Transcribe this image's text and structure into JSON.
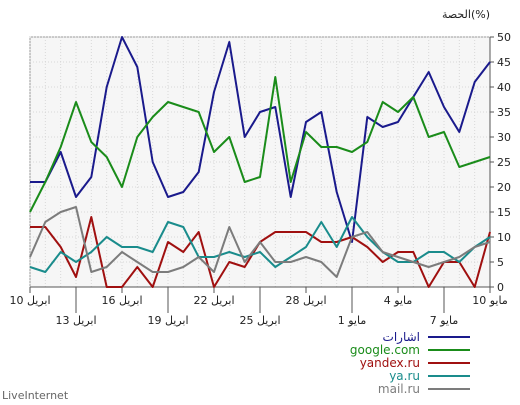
{
  "chart_data": {
    "type": "line",
    "title": "الحصة(%)",
    "ylim": [
      0,
      50
    ],
    "y_ticks": [
      0,
      5,
      10,
      15,
      20,
      25,
      30,
      35,
      40,
      45,
      50
    ],
    "x_ticks_row1": [
      {
        "index": 0,
        "label": "10 مايو"
      },
      {
        "index": 6,
        "label": "4 مايو"
      },
      {
        "index": 12,
        "label": "28 ابريل"
      },
      {
        "index": 18,
        "label": "22 ابريل"
      },
      {
        "index": 24,
        "label": "16 ابريل"
      },
      {
        "index": 30,
        "label": "10 ابريل"
      }
    ],
    "x_ticks_row2": [
      {
        "index": 3,
        "label": "7 مايو"
      },
      {
        "index": 9,
        "label": "1 مايو"
      },
      {
        "index": 15,
        "label": "25 ابريل"
      },
      {
        "index": 21,
        "label": "19 ابريل"
      },
      {
        "index": 27,
        "label": "13 ابريل"
      }
    ],
    "x_points": 31,
    "series": [
      {
        "name": "اشارات",
        "color": "#1a1a8c",
        "values": [
          45,
          41,
          31,
          36,
          43,
          38,
          33,
          32,
          34,
          9,
          19,
          35,
          33,
          18,
          36,
          35,
          30,
          49,
          39,
          23,
          19,
          18,
          25,
          44,
          50,
          40,
          22,
          18,
          27,
          21,
          21
        ]
      },
      {
        "name": "google.com",
        "color": "#1a8c1a",
        "values": [
          26,
          25,
          24,
          31,
          30,
          38,
          35,
          37,
          29,
          27,
          28,
          28,
          31,
          21,
          42,
          22,
          21,
          30,
          27,
          35,
          36,
          37,
          34,
          30,
          20,
          26,
          29,
          37,
          28,
          21,
          15
        ]
      },
      {
        "name": "yandex.ru",
        "color": "#a01010",
        "values": [
          11,
          0,
          5,
          5,
          0,
          7,
          7,
          5,
          8,
          10,
          9,
          9,
          11,
          11,
          11,
          9,
          4,
          5,
          0,
          11,
          7,
          9,
          0,
          4,
          0,
          0,
          14,
          2,
          8,
          12,
          12
        ]
      },
      {
        "name": "ya.ru",
        "color": "#1a8c8c",
        "values": [
          10,
          8,
          5,
          7,
          7,
          5,
          5,
          7,
          10,
          14,
          8,
          13,
          8,
          6,
          4,
          7,
          6,
          7,
          6,
          6,
          12,
          13,
          7,
          8,
          8,
          10,
          7,
          5,
          7,
          3,
          4
        ]
      },
      {
        "name": "mail.ru",
        "color": "#7c7c7c",
        "values": [
          9,
          8,
          6,
          5,
          4,
          5,
          6,
          7,
          11,
          10,
          2,
          5,
          6,
          5,
          5,
          9,
          5,
          12,
          3,
          6,
          4,
          3,
          3,
          5,
          7,
          4,
          3,
          16,
          15,
          13,
          6
        ]
      }
    ]
  },
  "footer": "LiveInternet"
}
